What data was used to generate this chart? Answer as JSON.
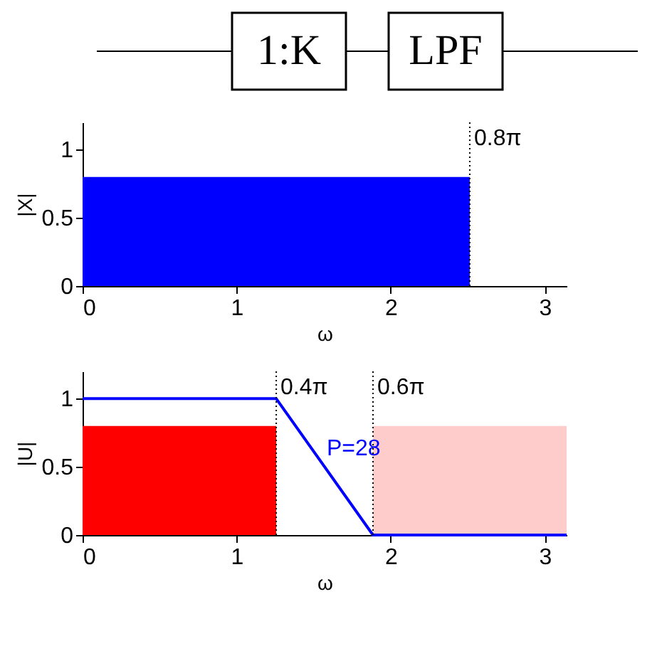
{
  "chart_data": [
    {
      "type": "other",
      "annotations": [
        "1:K",
        "LPF"
      ]
    },
    {
      "type": "area",
      "xlabel": "ω",
      "ylabel": "|X|",
      "xlim": [
        0,
        3.1416
      ],
      "ylim": [
        0,
        1.2
      ],
      "xticks": [
        0,
        1,
        2,
        3
      ],
      "yticks": [
        0,
        0.5,
        1
      ],
      "series": [
        {
          "color": "#0000ff",
          "x": [
            0,
            2.513
          ],
          "values": [
            0.8,
            0.8
          ]
        }
      ],
      "ref_lines": [
        {
          "axis": "x",
          "value": 2.513,
          "label": "0.8π",
          "line_style": "dotted"
        }
      ]
    },
    {
      "type": "area",
      "xlabel": "ω",
      "ylabel": "|U|",
      "xlim": [
        0,
        3.1416
      ],
      "ylim": [
        0,
        1.2
      ],
      "xticks": [
        0,
        1,
        2,
        3
      ],
      "yticks": [
        0,
        0.5,
        1
      ],
      "series": [
        {
          "color": "#ff0000",
          "x": [
            0,
            1.257
          ],
          "values": [
            0.8,
            0.8
          ]
        },
        {
          "color": "#ffcccc",
          "x": [
            1.885,
            3.1416
          ],
          "values": [
            0.8,
            0.8
          ]
        },
        {
          "type": "line",
          "color": "#0000ff",
          "x": [
            0,
            1.257,
            1.885,
            3.1416
          ],
          "values": [
            1,
            1,
            0,
            0
          ]
        }
      ],
      "ref_lines": [
        {
          "axis": "x",
          "value": 1.257,
          "label": "0.4π",
          "line_style": "dotted"
        },
        {
          "axis": "x",
          "value": 1.885,
          "label": "0.6π",
          "line_style": "dotted"
        }
      ],
      "annotations": [
        "P=28"
      ]
    }
  ]
}
